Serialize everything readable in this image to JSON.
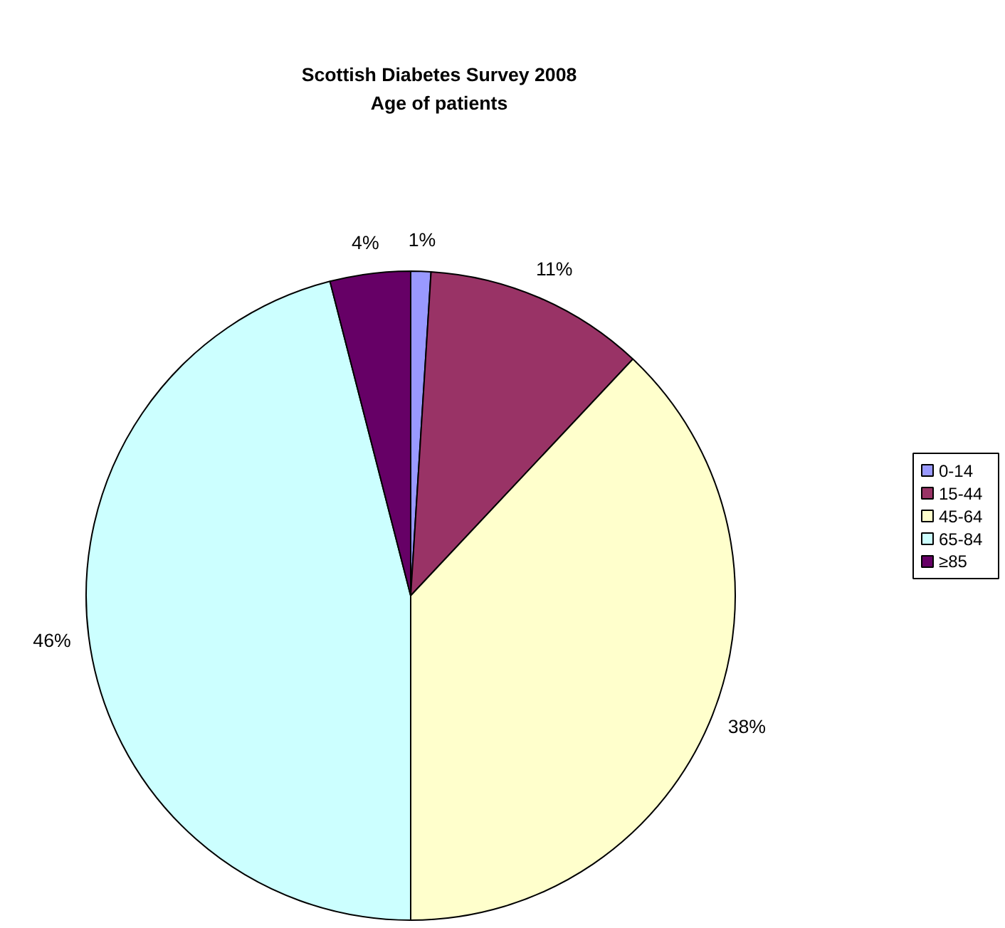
{
  "chart_data": {
    "type": "pie",
    "title": "Scottish Diabetes Survey 2008",
    "subtitle": "Age of patients",
    "categories": [
      "0-14",
      "15-44",
      "45-64",
      "65-84",
      "≥85"
    ],
    "values": [
      1,
      11,
      38,
      46,
      4
    ],
    "colors": [
      "#9999ff",
      "#993366",
      "#ffffcc",
      "#ccffff",
      "#660066"
    ],
    "value_labels": [
      "1%",
      "11%",
      "38%",
      "46%",
      "4%"
    ],
    "legend": "right"
  }
}
